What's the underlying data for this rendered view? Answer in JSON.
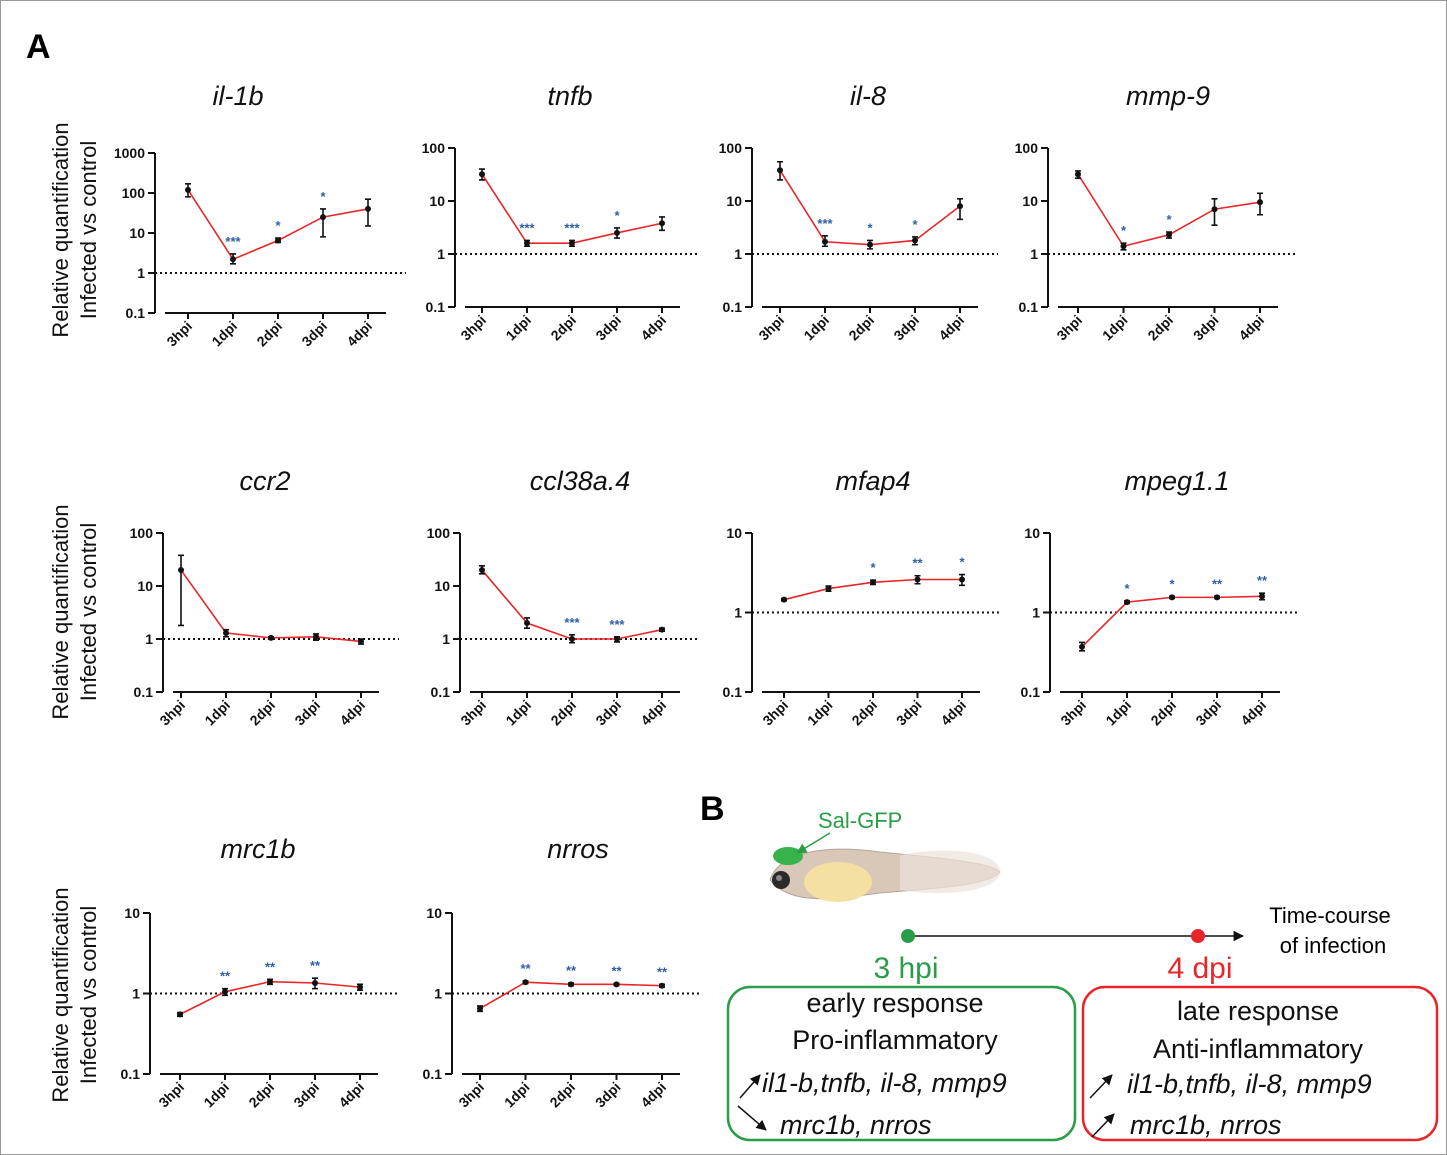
{
  "panel_labels": [
    "A",
    "B"
  ],
  "ylabel_lines": [
    "Relative quantification",
    "Infected vs control"
  ],
  "chart_data": [
    {
      "type": "line",
      "title": "il-1b",
      "categories": [
        "3hpi",
        "1dpi",
        "2dpi",
        "3dpi",
        "4dpi"
      ],
      "series": [
        {
          "color": "#e8262a",
          "values": [
            120,
            2.2,
            6.5,
            25,
            40
          ],
          "lower": [
            80,
            1.7,
            5.8,
            8,
            15
          ],
          "upper": [
            170,
            3,
            7.5,
            40,
            70
          ]
        }
      ],
      "significance": [
        null,
        "***",
        "*",
        "*",
        null
      ],
      "significance_color": "#2e5fa8",
      "log_scale": true,
      "ylim": [
        0.1,
        1000
      ],
      "yticks": [
        0.1,
        1,
        10,
        100,
        1000
      ],
      "reference_line": 1
    },
    {
      "type": "line",
      "title": "tnfb",
      "categories": [
        "3hpi",
        "1dpi",
        "2dpi",
        "3dpi",
        "4dpi"
      ],
      "series": [
        {
          "color": "#e8262a",
          "values": [
            32,
            1.6,
            1.6,
            2.5,
            3.8
          ],
          "lower": [
            25,
            1.4,
            1.4,
            2,
            2.8
          ],
          "upper": [
            40,
            1.8,
            1.8,
            3.1,
            5
          ]
        }
      ],
      "significance": [
        null,
        "***",
        "***",
        "*",
        null
      ],
      "significance_color": "#2e5fa8",
      "log_scale": true,
      "ylim": [
        0.1,
        100
      ],
      "yticks": [
        0.1,
        1,
        10,
        100
      ],
      "reference_line": 1
    },
    {
      "type": "line",
      "title": "il-8",
      "categories": [
        "3hpi",
        "1dpi",
        "2dpi",
        "3dpi",
        "4dpi"
      ],
      "series": [
        {
          "color": "#e8262a",
          "values": [
            38,
            1.7,
            1.5,
            1.8,
            8
          ],
          "lower": [
            25,
            1.4,
            1.25,
            1.5,
            4.5
          ],
          "upper": [
            55,
            2.2,
            1.8,
            2.1,
            11
          ]
        }
      ],
      "significance": [
        null,
        "***",
        "*",
        "*",
        null
      ],
      "significance_color": "#2e5fa8",
      "log_scale": true,
      "ylim": [
        0.1,
        100
      ],
      "yticks": [
        0.1,
        1,
        10,
        100
      ],
      "reference_line": 1
    },
    {
      "type": "line",
      "title": "mmp-9",
      "categories": [
        "3hpi",
        "1dpi",
        "2dpi",
        "3dpi",
        "4dpi"
      ],
      "series": [
        {
          "color": "#e8262a",
          "values": [
            32,
            1.4,
            2.3,
            7,
            9.5
          ],
          "lower": [
            27,
            1.2,
            2,
            3.5,
            5.5
          ],
          "upper": [
            37,
            1.6,
            2.6,
            11,
            14
          ]
        }
      ],
      "significance": [
        null,
        "*",
        "*",
        null,
        null
      ],
      "significance_color": "#2e5fa8",
      "log_scale": true,
      "ylim": [
        0.1,
        100
      ],
      "yticks": [
        0.1,
        1,
        10,
        100
      ],
      "reference_line": 1
    },
    {
      "type": "line",
      "title": "ccr2",
      "categories": [
        "3hpi",
        "1dpi",
        "2dpi",
        "3dpi",
        "4dpi"
      ],
      "series": [
        {
          "color": "#e8262a",
          "values": [
            20,
            1.3,
            1.05,
            1.1,
            0.9
          ],
          "lower": [
            1.8,
            1.1,
            1.0,
            0.95,
            0.8
          ],
          "upper": [
            38,
            1.5,
            1.1,
            1.25,
            1.0
          ]
        }
      ],
      "significance": [
        null,
        null,
        null,
        null,
        null
      ],
      "significance_color": "#2e5fa8",
      "log_scale": true,
      "ylim": [
        0.1,
        100
      ],
      "yticks": [
        0.1,
        1,
        10,
        100
      ],
      "reference_line": 1
    },
    {
      "type": "line",
      "title": "ccl38a.4",
      "categories": [
        "3hpi",
        "1dpi",
        "2dpi",
        "3dpi",
        "4dpi"
      ],
      "series": [
        {
          "color": "#e8262a",
          "values": [
            20,
            2,
            1.0,
            1.0,
            1.5
          ],
          "lower": [
            17,
            1.6,
            0.85,
            0.88,
            1.4
          ],
          "upper": [
            24,
            2.5,
            1.2,
            1.1,
            1.6
          ]
        }
      ],
      "significance": [
        null,
        null,
        "***",
        "***",
        null
      ],
      "significance_color": "#2e5fa8",
      "log_scale": true,
      "ylim": [
        0.1,
        100
      ],
      "yticks": [
        0.1,
        1,
        10,
        100
      ],
      "reference_line": 1
    },
    {
      "type": "line",
      "title": "mfap4",
      "categories": [
        "3hpi",
        "1dpi",
        "2dpi",
        "3dpi",
        "4dpi"
      ],
      "series": [
        {
          "color": "#e8262a",
          "values": [
            1.45,
            2.0,
            2.4,
            2.6,
            2.6
          ],
          "lower": [
            1.4,
            1.85,
            2.25,
            2.3,
            2.2
          ],
          "upper": [
            1.5,
            2.15,
            2.55,
            2.9,
            3.0
          ]
        }
      ],
      "significance": [
        null,
        null,
        "*",
        "**",
        "*"
      ],
      "significance_color": "#2e5fa8",
      "log_scale": true,
      "ylim": [
        0.1,
        10
      ],
      "yticks": [
        0.1,
        1,
        10
      ],
      "reference_line": 1
    },
    {
      "type": "line",
      "title": "mpeg1.1",
      "categories": [
        "3hpi",
        "1dpi",
        "2dpi",
        "3dpi",
        "4dpi"
      ],
      "series": [
        {
          "color": "#e8262a",
          "values": [
            0.37,
            1.35,
            1.55,
            1.55,
            1.6
          ],
          "lower": [
            0.33,
            1.3,
            1.5,
            1.5,
            1.45
          ],
          "upper": [
            0.42,
            1.4,
            1.6,
            1.6,
            1.75
          ]
        }
      ],
      "significance": [
        null,
        "*",
        "*",
        "**",
        "**"
      ],
      "significance_color": "#2e5fa8",
      "log_scale": true,
      "ylim": [
        0.1,
        10
      ],
      "yticks": [
        0.1,
        1,
        10
      ],
      "reference_line": 1
    },
    {
      "type": "line",
      "title": "mrc1b",
      "categories": [
        "3hpi",
        "1dpi",
        "2dpi",
        "3dpi",
        "4dpi"
      ],
      "series": [
        {
          "color": "#e8262a",
          "values": [
            0.55,
            1.05,
            1.4,
            1.35,
            1.2
          ],
          "lower": [
            0.52,
            0.95,
            1.3,
            1.15,
            1.1
          ],
          "upper": [
            0.58,
            1.15,
            1.5,
            1.55,
            1.3
          ]
        }
      ],
      "significance": [
        null,
        "**",
        "**",
        "**",
        null
      ],
      "significance_color": "#2e5fa8",
      "log_scale": true,
      "ylim": [
        0.1,
        10
      ],
      "yticks": [
        0.1,
        1,
        10
      ],
      "reference_line": 1
    },
    {
      "type": "line",
      "title": "nrros",
      "categories": [
        "3hpi",
        "1dpi",
        "2dpi",
        "3dpi",
        "4dpi"
      ],
      "series": [
        {
          "color": "#e8262a",
          "values": [
            0.65,
            1.38,
            1.3,
            1.3,
            1.25
          ],
          "lower": [
            0.6,
            1.33,
            1.25,
            1.26,
            1.2
          ],
          "upper": [
            0.7,
            1.43,
            1.35,
            1.34,
            1.3
          ]
        }
      ],
      "significance": [
        null,
        "**",
        "**",
        "**",
        "**"
      ],
      "significance_color": "#2e5fa8",
      "log_scale": true,
      "ylim": [
        0.1,
        10
      ],
      "yticks": [
        0.1,
        1,
        10
      ],
      "reference_line": 1
    }
  ],
  "panel_b": {
    "fish_label": "Sal-GFP",
    "timeline_label": [
      "Time-course",
      "of infection"
    ],
    "early": {
      "time": "3 hpi",
      "lines": [
        "early response",
        "Pro-inflammatory"
      ],
      "up": "il1-b,tnfb, il-8, mmp9",
      "down": "mrc1b, nrros"
    },
    "late": {
      "time": "4 dpi",
      "lines": [
        "late response",
        "Anti-inflammatory"
      ],
      "up": "il1-b,tnfb, il-8, mmp9",
      "up2": "mrc1b, nrros"
    }
  }
}
